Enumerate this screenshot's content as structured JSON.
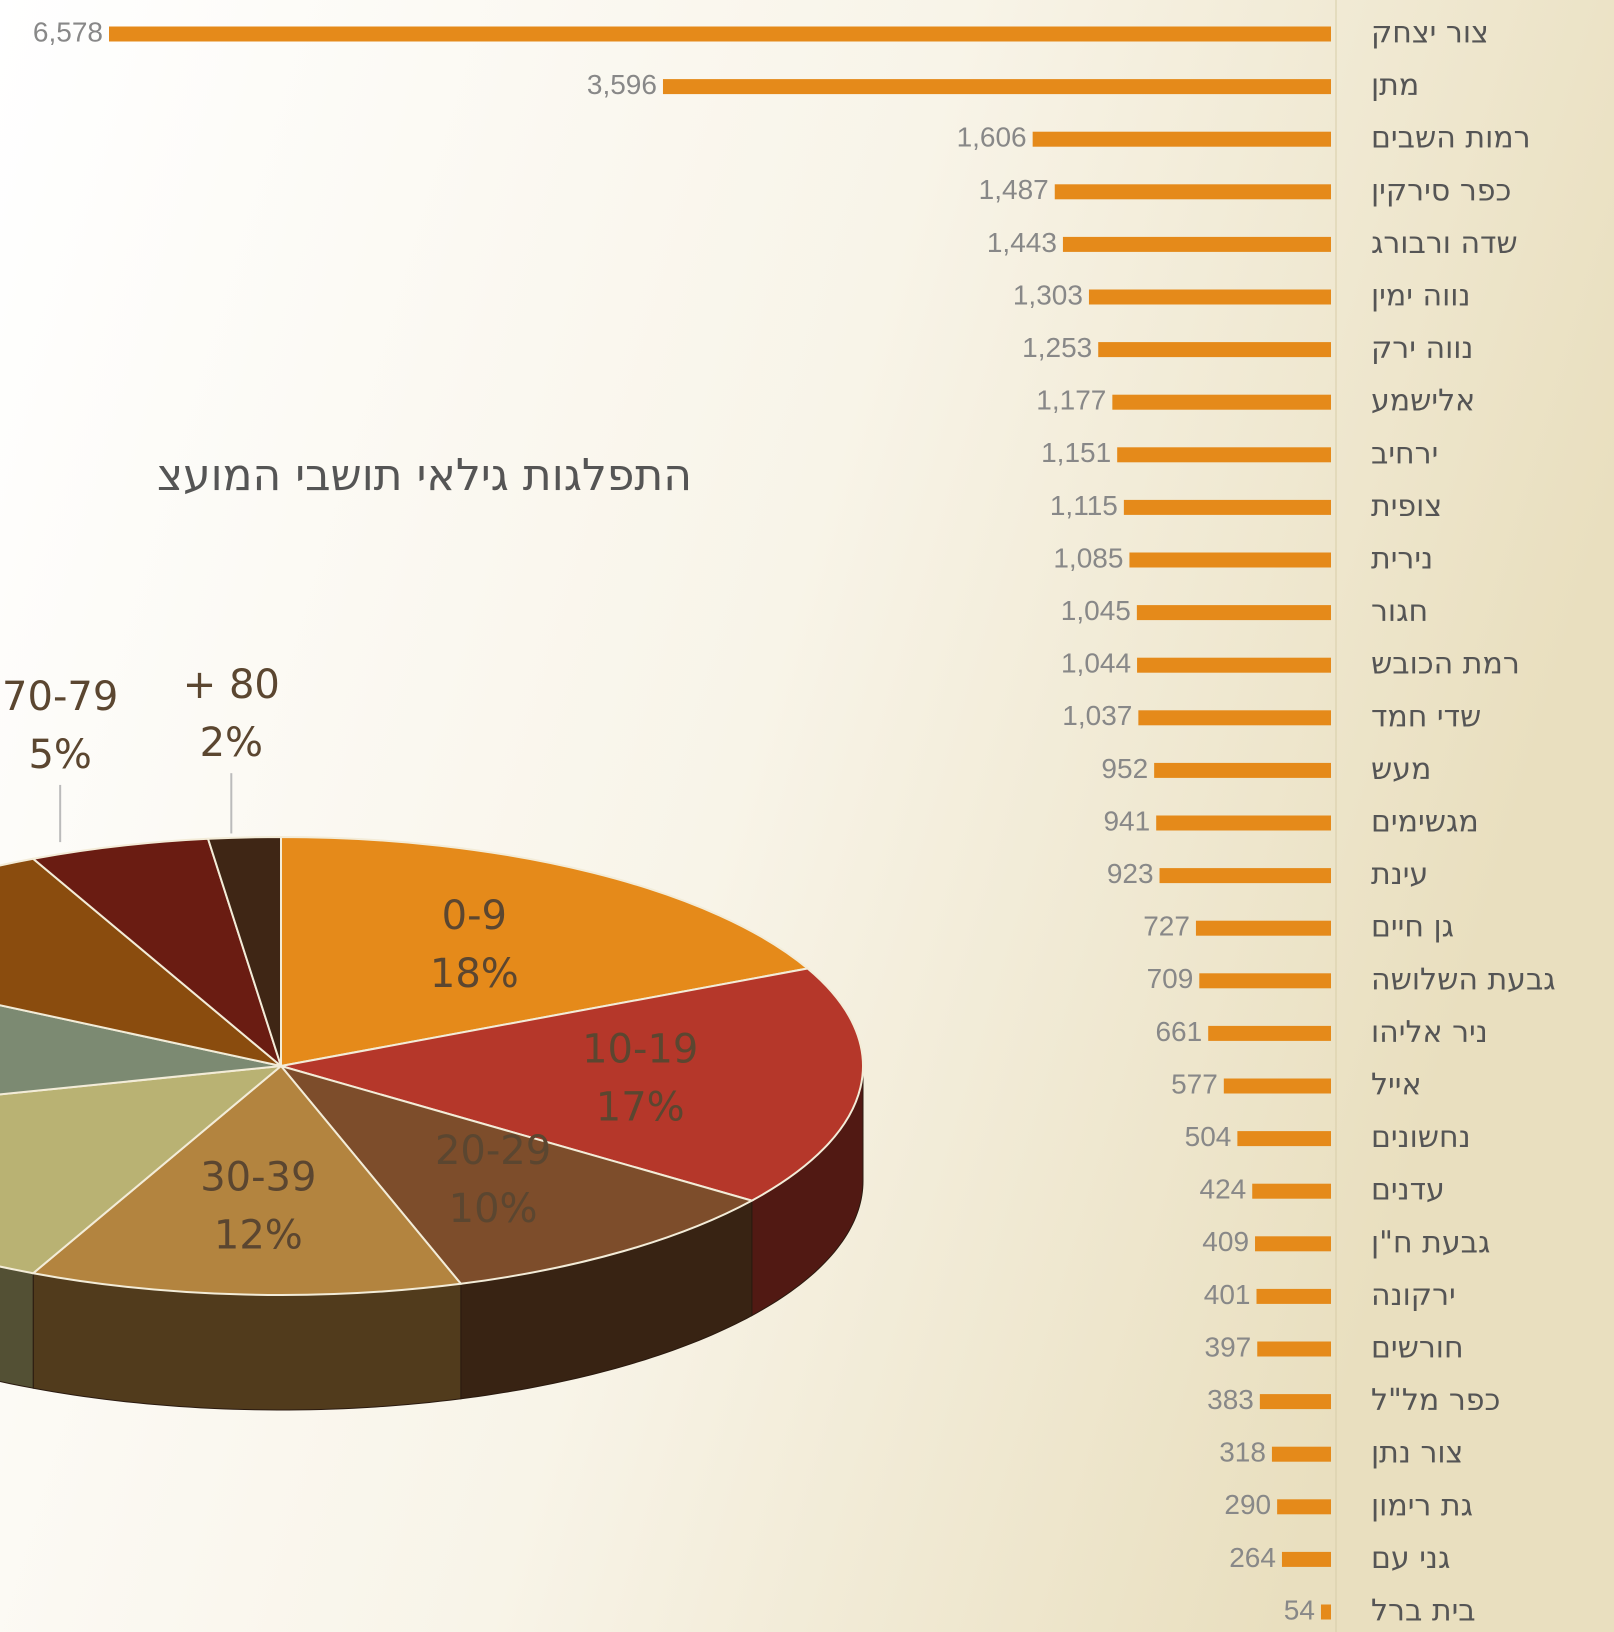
{
  "chart_data": [
    {
      "type": "barh",
      "categories": [
        "צור יצחק",
        "מתן",
        "רמות השבים",
        "כפר סירקין",
        "שדה ורבורג",
        "נווה ימין",
        "נווה ירק",
        "אלישמע",
        "ירחיב",
        "צופית",
        "נירית",
        "חגור",
        "רמת הכובש",
        "שדי חמד",
        "מעש",
        "מגשימים",
        "עינת",
        "גן חיים",
        "גבעת השלושה",
        "ניר אליהו",
        "אייל",
        "נחשונים",
        "עדנים",
        "גבעת ח\"ן",
        "ירקונה",
        "חורשים",
        "כפר מל\"ל",
        "צור נתן",
        "גת רימון",
        "גני עם",
        "בית ברל"
      ],
      "values": [
        6578,
        3596,
        1606,
        1487,
        1443,
        1303,
        1253,
        1177,
        1151,
        1115,
        1085,
        1045,
        1044,
        1037,
        952,
        941,
        923,
        727,
        709,
        661,
        577,
        504,
        424,
        409,
        401,
        397,
        383,
        318,
        290,
        264,
        54
      ],
      "value_labels": [
        "6,578",
        "3,596",
        "1,606",
        "1,487",
        "1,443",
        "1,303",
        "1,253",
        "1,177",
        "1,151",
        "1,115",
        "1,085",
        "1,045",
        "1,044",
        "1,037",
        "952",
        "941",
        "923",
        "727",
        "709",
        "661",
        "577",
        "504",
        "424",
        "409",
        "401",
        "397",
        "383",
        "318",
        "290",
        "264",
        "54"
      ],
      "color": "#e58a1a"
    },
    {
      "type": "pie3d",
      "title": "התפלגות גילאי תושבי המועצ",
      "categories": [
        "0-9",
        "10-19",
        "20-29",
        "30-39",
        null,
        null,
        null,
        "70-79",
        "+ 80"
      ],
      "values": [
        18,
        17,
        10,
        12,
        14,
        12,
        10,
        5,
        2
      ],
      "value_labels": [
        "18%",
        "17%",
        "10%",
        "12%",
        null,
        null,
        null,
        "5%",
        "2%"
      ],
      "colors": [
        "#e58a1a",
        "#b5372a",
        "#7d4d2b",
        "#b3843f",
        "#b9b273",
        "#7c8a72",
        "#8a4c0e",
        "#6a1c12",
        "#3f2615"
      ]
    }
  ]
}
